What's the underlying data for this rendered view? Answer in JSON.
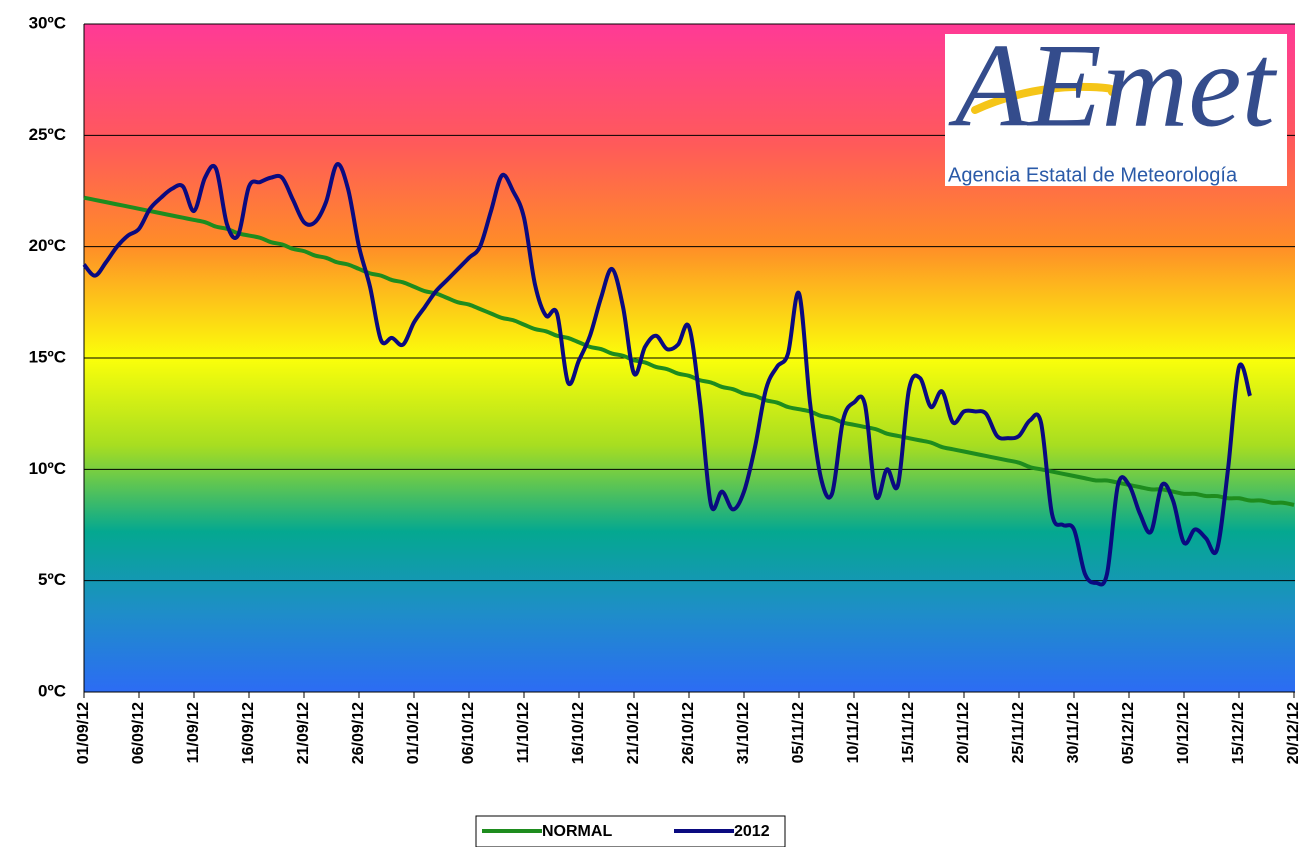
{
  "chart_data": {
    "type": "line",
    "categories": [
      "01/09/12",
      null,
      null,
      null,
      null,
      "06/09/12",
      null,
      null,
      null,
      null,
      "11/09/12",
      null,
      null,
      null,
      null,
      "16/09/12",
      null,
      null,
      null,
      null,
      "21/09/12",
      null,
      null,
      null,
      null,
      "26/09/12",
      null,
      null,
      null,
      null,
      "01/10/12",
      null,
      null,
      null,
      null,
      "06/10/12",
      null,
      null,
      null,
      null,
      "11/10/12",
      null,
      null,
      null,
      null,
      "16/10/12",
      null,
      null,
      null,
      null,
      "21/10/12",
      null,
      null,
      null,
      null,
      "26/10/12",
      null,
      null,
      null,
      null,
      "31/10/12",
      null,
      null,
      null,
      null,
      "05/11/12",
      null,
      null,
      null,
      null,
      "10/11/12",
      null,
      null,
      null,
      null,
      "15/11/12",
      null,
      null,
      null,
      null,
      "20/11/12",
      null,
      null,
      null,
      null,
      "25/11/12",
      null,
      null,
      null,
      null,
      "30/11/12",
      null,
      null,
      null,
      null,
      "05/12/12",
      null,
      null,
      null,
      null,
      "10/12/12",
      null,
      null,
      null,
      null,
      "15/12/12",
      null,
      null,
      null,
      null,
      "20/12/12"
    ],
    "series": [
      {
        "name": "NORMAL",
        "color": "#1e8c1e",
        "values": [
          22.2,
          22.1,
          22.0,
          21.9,
          21.8,
          21.7,
          21.6,
          21.5,
          21.4,
          21.3,
          21.2,
          21.1,
          20.9,
          20.8,
          20.6,
          20.5,
          20.4,
          20.2,
          20.1,
          19.9,
          19.8,
          19.6,
          19.5,
          19.3,
          19.2,
          19.0,
          18.8,
          18.7,
          18.5,
          18.4,
          18.2,
          18.0,
          17.9,
          17.7,
          17.5,
          17.4,
          17.2,
          17.0,
          16.8,
          16.7,
          16.5,
          16.3,
          16.2,
          16.0,
          15.9,
          15.7,
          15.5,
          15.4,
          15.2,
          15.1,
          14.9,
          14.8,
          14.6,
          14.5,
          14.3,
          14.2,
          14.0,
          13.9,
          13.7,
          13.6,
          13.4,
          13.3,
          13.1,
          13.0,
          12.8,
          12.7,
          12.6,
          12.4,
          12.3,
          12.1,
          12.0,
          11.9,
          11.8,
          11.6,
          11.5,
          11.4,
          11.3,
          11.2,
          11.0,
          10.9,
          10.8,
          10.7,
          10.6,
          10.5,
          10.4,
          10.3,
          10.1,
          10.0,
          9.9,
          9.8,
          9.7,
          9.6,
          9.5,
          9.5,
          9.4,
          9.3,
          9.2,
          9.1,
          9.1,
          9.0,
          8.9,
          8.9,
          8.8,
          8.8,
          8.7,
          8.7,
          8.6,
          8.6,
          8.5,
          8.5,
          8.4
        ]
      },
      {
        "name": "2012",
        "color": "#0a0a80",
        "values": [
          19.2,
          18.7,
          19.3,
          20.0,
          20.5,
          20.8,
          21.7,
          22.2,
          22.6,
          22.7,
          21.6,
          23.1,
          23.5,
          21.0,
          20.5,
          22.7,
          22.9,
          23.1,
          23.1,
          22.1,
          21.1,
          21.1,
          22.0,
          23.7,
          22.6,
          20.0,
          18.2,
          15.8,
          15.9,
          15.6,
          16.6,
          17.3,
          18.0,
          18.5,
          19.0,
          19.5,
          20.0,
          21.6,
          23.2,
          22.5,
          21.3,
          18.3,
          16.9,
          17.0,
          13.9,
          14.9,
          16.0,
          17.7,
          19.0,
          17.3,
          14.3,
          15.5,
          16.0,
          15.4,
          15.6,
          16.4,
          13.0,
          8.4,
          9.0,
          8.2,
          9.0,
          11.0,
          13.6,
          14.6,
          15.2,
          17.9,
          13.0,
          9.6,
          8.9,
          12.2,
          13.0,
          12.9,
          8.8,
          10.0,
          9.3,
          13.6,
          14.1,
          12.8,
          13.5,
          12.1,
          12.6,
          12.6,
          12.5,
          11.5,
          11.4,
          11.5,
          12.2,
          12.1,
          8.0,
          7.5,
          7.3,
          5.3,
          4.9,
          5.3,
          9.3,
          9.3,
          8.0,
          7.2,
          9.3,
          8.6,
          6.7,
          7.3,
          6.9,
          6.4,
          10.0,
          14.6,
          13.3,
          null,
          null,
          null,
          null
        ]
      }
    ],
    "ylim": [
      0,
      30
    ],
    "yticks": [
      {
        "value": 0,
        "label": "0ºC"
      },
      {
        "value": 5,
        "label": "5ºC"
      },
      {
        "value": 10,
        "label": "10ºC"
      },
      {
        "value": 15,
        "label": "15ºC"
      },
      {
        "value": 20,
        "label": "20ºC"
      },
      {
        "value": 25,
        "label": "25ºC"
      },
      {
        "value": 30,
        "label": "30ºC"
      }
    ],
    "grid": true,
    "legend": "bottom"
  },
  "logo": {
    "name": "AEmet",
    "text": "Agencia Estatal de Meteorología"
  }
}
